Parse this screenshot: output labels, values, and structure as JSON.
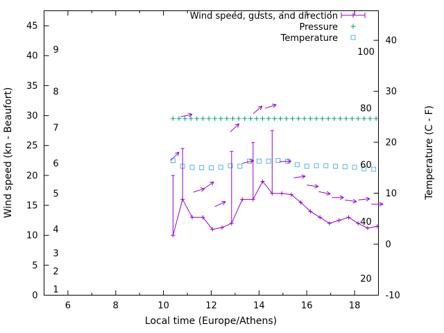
{
  "legend": {
    "entries": [
      {
        "label": "Wind speed, gusts, and direction",
        "color": "#9400d3",
        "marker": "line-with-point-and-caps"
      },
      {
        "label": "Pressure",
        "color": "#009e73",
        "marker": "plus"
      },
      {
        "label": "Temperature",
        "color": "#56b4e9",
        "marker": "open-square"
      }
    ]
  },
  "chart_data": {
    "type": "line",
    "title": "",
    "xlabel": "Local time (Europe/Athens)",
    "ylabel_left": "Wind speed (kn - Beaufort)",
    "ylabel_right": "Temperature (C - F)",
    "grid": false,
    "legend_position": "top-right-inside",
    "x_axis": {
      "min": 5,
      "max": 19,
      "ticks": [
        6,
        8,
        10,
        12,
        14,
        16,
        18
      ],
      "minor_ticks": [
        7,
        9,
        11,
        13,
        15,
        17
      ]
    },
    "y_axis_left": {
      "min": 0,
      "max": 47.5,
      "ticks": [
        0,
        5,
        10,
        15,
        20,
        25,
        30,
        35,
        40,
        45
      ],
      "beaufort_scale": {
        "labels": [
          "1",
          "2",
          "3",
          "4",
          "5",
          "6",
          "7",
          "8",
          "9"
        ],
        "positions_kn": [
          1,
          4,
          7,
          11,
          17,
          22,
          28,
          34,
          41
        ]
      }
    },
    "y_axis_right": {
      "min": -10,
      "max": 45.8,
      "ticks": [
        -10,
        0,
        10,
        20,
        30,
        40
      ],
      "fahrenheit_scale": {
        "labels": [
          "20",
          "40",
          "60",
          "80",
          "100"
        ],
        "positions_c": [
          -6.7,
          4.4,
          15.6,
          26.7,
          37.8
        ]
      }
    },
    "series": {
      "wind": {
        "name": "Wind speed, gusts, and direction",
        "color": "#9400d3",
        "axis": "left",
        "unit": "kn",
        "points_format": [
          "time_h",
          "speed_kn",
          "gust_kn_or_null"
        ],
        "points": [
          [
            10.4,
            10,
            20
          ],
          [
            10.8,
            16,
            24.5
          ],
          [
            11.2,
            13,
            null
          ],
          [
            11.65,
            13,
            null
          ],
          [
            12.05,
            11,
            null
          ],
          [
            12.45,
            11.3,
            null
          ],
          [
            12.85,
            12,
            24
          ],
          [
            13.3,
            16,
            null
          ],
          [
            13.75,
            16,
            25.5
          ],
          [
            14.15,
            19,
            null
          ],
          [
            14.55,
            17,
            27.5
          ],
          [
            14.95,
            17,
            null
          ],
          [
            15.35,
            16.8,
            null
          ],
          [
            15.75,
            15.5,
            null
          ],
          [
            16.15,
            14,
            null
          ],
          [
            16.55,
            13,
            null
          ],
          [
            16.95,
            12,
            null
          ],
          [
            17.35,
            12.5,
            null
          ],
          [
            17.75,
            13,
            null
          ],
          [
            18.15,
            12,
            null
          ],
          [
            18.55,
            11.2,
            null
          ],
          [
            18.95,
            11.5,
            null
          ]
        ]
      },
      "wind_direction_arrows": {
        "color": "#9400d3",
        "axis": "left",
        "arrows_format": [
          "time_h",
          "y_kn",
          "angle_deg_ccw_from_east"
        ],
        "arrows": [
          [
            10.3,
            22.5,
            45
          ],
          [
            10.72,
            29.8,
            12
          ],
          [
            11.25,
            17.2,
            18
          ],
          [
            11.7,
            17.8,
            35
          ],
          [
            12.15,
            14.8,
            25
          ],
          [
            12.8,
            27.3,
            42
          ],
          [
            13.3,
            22,
            15
          ],
          [
            13.75,
            30.3,
            40
          ],
          [
            14.25,
            31.2,
            18
          ],
          [
            14.85,
            22.3,
            2
          ],
          [
            15.45,
            19.6,
            8
          ],
          [
            16,
            18.4,
            -8
          ],
          [
            16.5,
            17.3,
            -12
          ],
          [
            17.05,
            16.3,
            0
          ],
          [
            17.6,
            15.9,
            -8
          ],
          [
            18.15,
            15.9,
            6
          ],
          [
            18.7,
            15.2,
            0
          ]
        ]
      },
      "pressure": {
        "name": "Pressure",
        "color": "#009e73",
        "axis": "left",
        "marker": "plus",
        "display_level_kn": 29.5,
        "times": [
          10.4,
          10.65,
          10.9,
          11.15,
          11.4,
          11.65,
          11.9,
          12.15,
          12.4,
          12.65,
          12.9,
          13.15,
          13.4,
          13.65,
          13.9,
          14.15,
          14.4,
          14.65,
          14.9,
          15.15,
          15.4,
          15.65,
          15.9,
          16.15,
          16.4,
          16.65,
          16.9,
          17.15,
          17.4,
          17.65,
          17.9,
          18.15,
          18.4,
          18.65,
          18.9
        ]
      },
      "temperature": {
        "name": "Temperature",
        "color": "#56b4e9",
        "axis": "right",
        "unit": "C",
        "marker": "open-square",
        "points_format": [
          "time_h",
          "temp_c"
        ],
        "points": [
          [
            10.4,
            16.4
          ],
          [
            10.8,
            15.3
          ],
          [
            11.2,
            15.1
          ],
          [
            11.6,
            15.0
          ],
          [
            12.0,
            15.0
          ],
          [
            12.4,
            15.1
          ],
          [
            12.8,
            15.4
          ],
          [
            13.2,
            15.3
          ],
          [
            13.6,
            16.3
          ],
          [
            14.0,
            16.3
          ],
          [
            14.4,
            16.3
          ],
          [
            14.8,
            16.4
          ],
          [
            15.2,
            16.3
          ],
          [
            15.6,
            15.6
          ],
          [
            16.0,
            15.3
          ],
          [
            16.4,
            15.4
          ],
          [
            16.8,
            15.4
          ],
          [
            17.2,
            15.3
          ],
          [
            17.6,
            15.2
          ],
          [
            18.0,
            15.1
          ],
          [
            18.4,
            14.8
          ],
          [
            18.8,
            14.7
          ]
        ]
      }
    }
  }
}
